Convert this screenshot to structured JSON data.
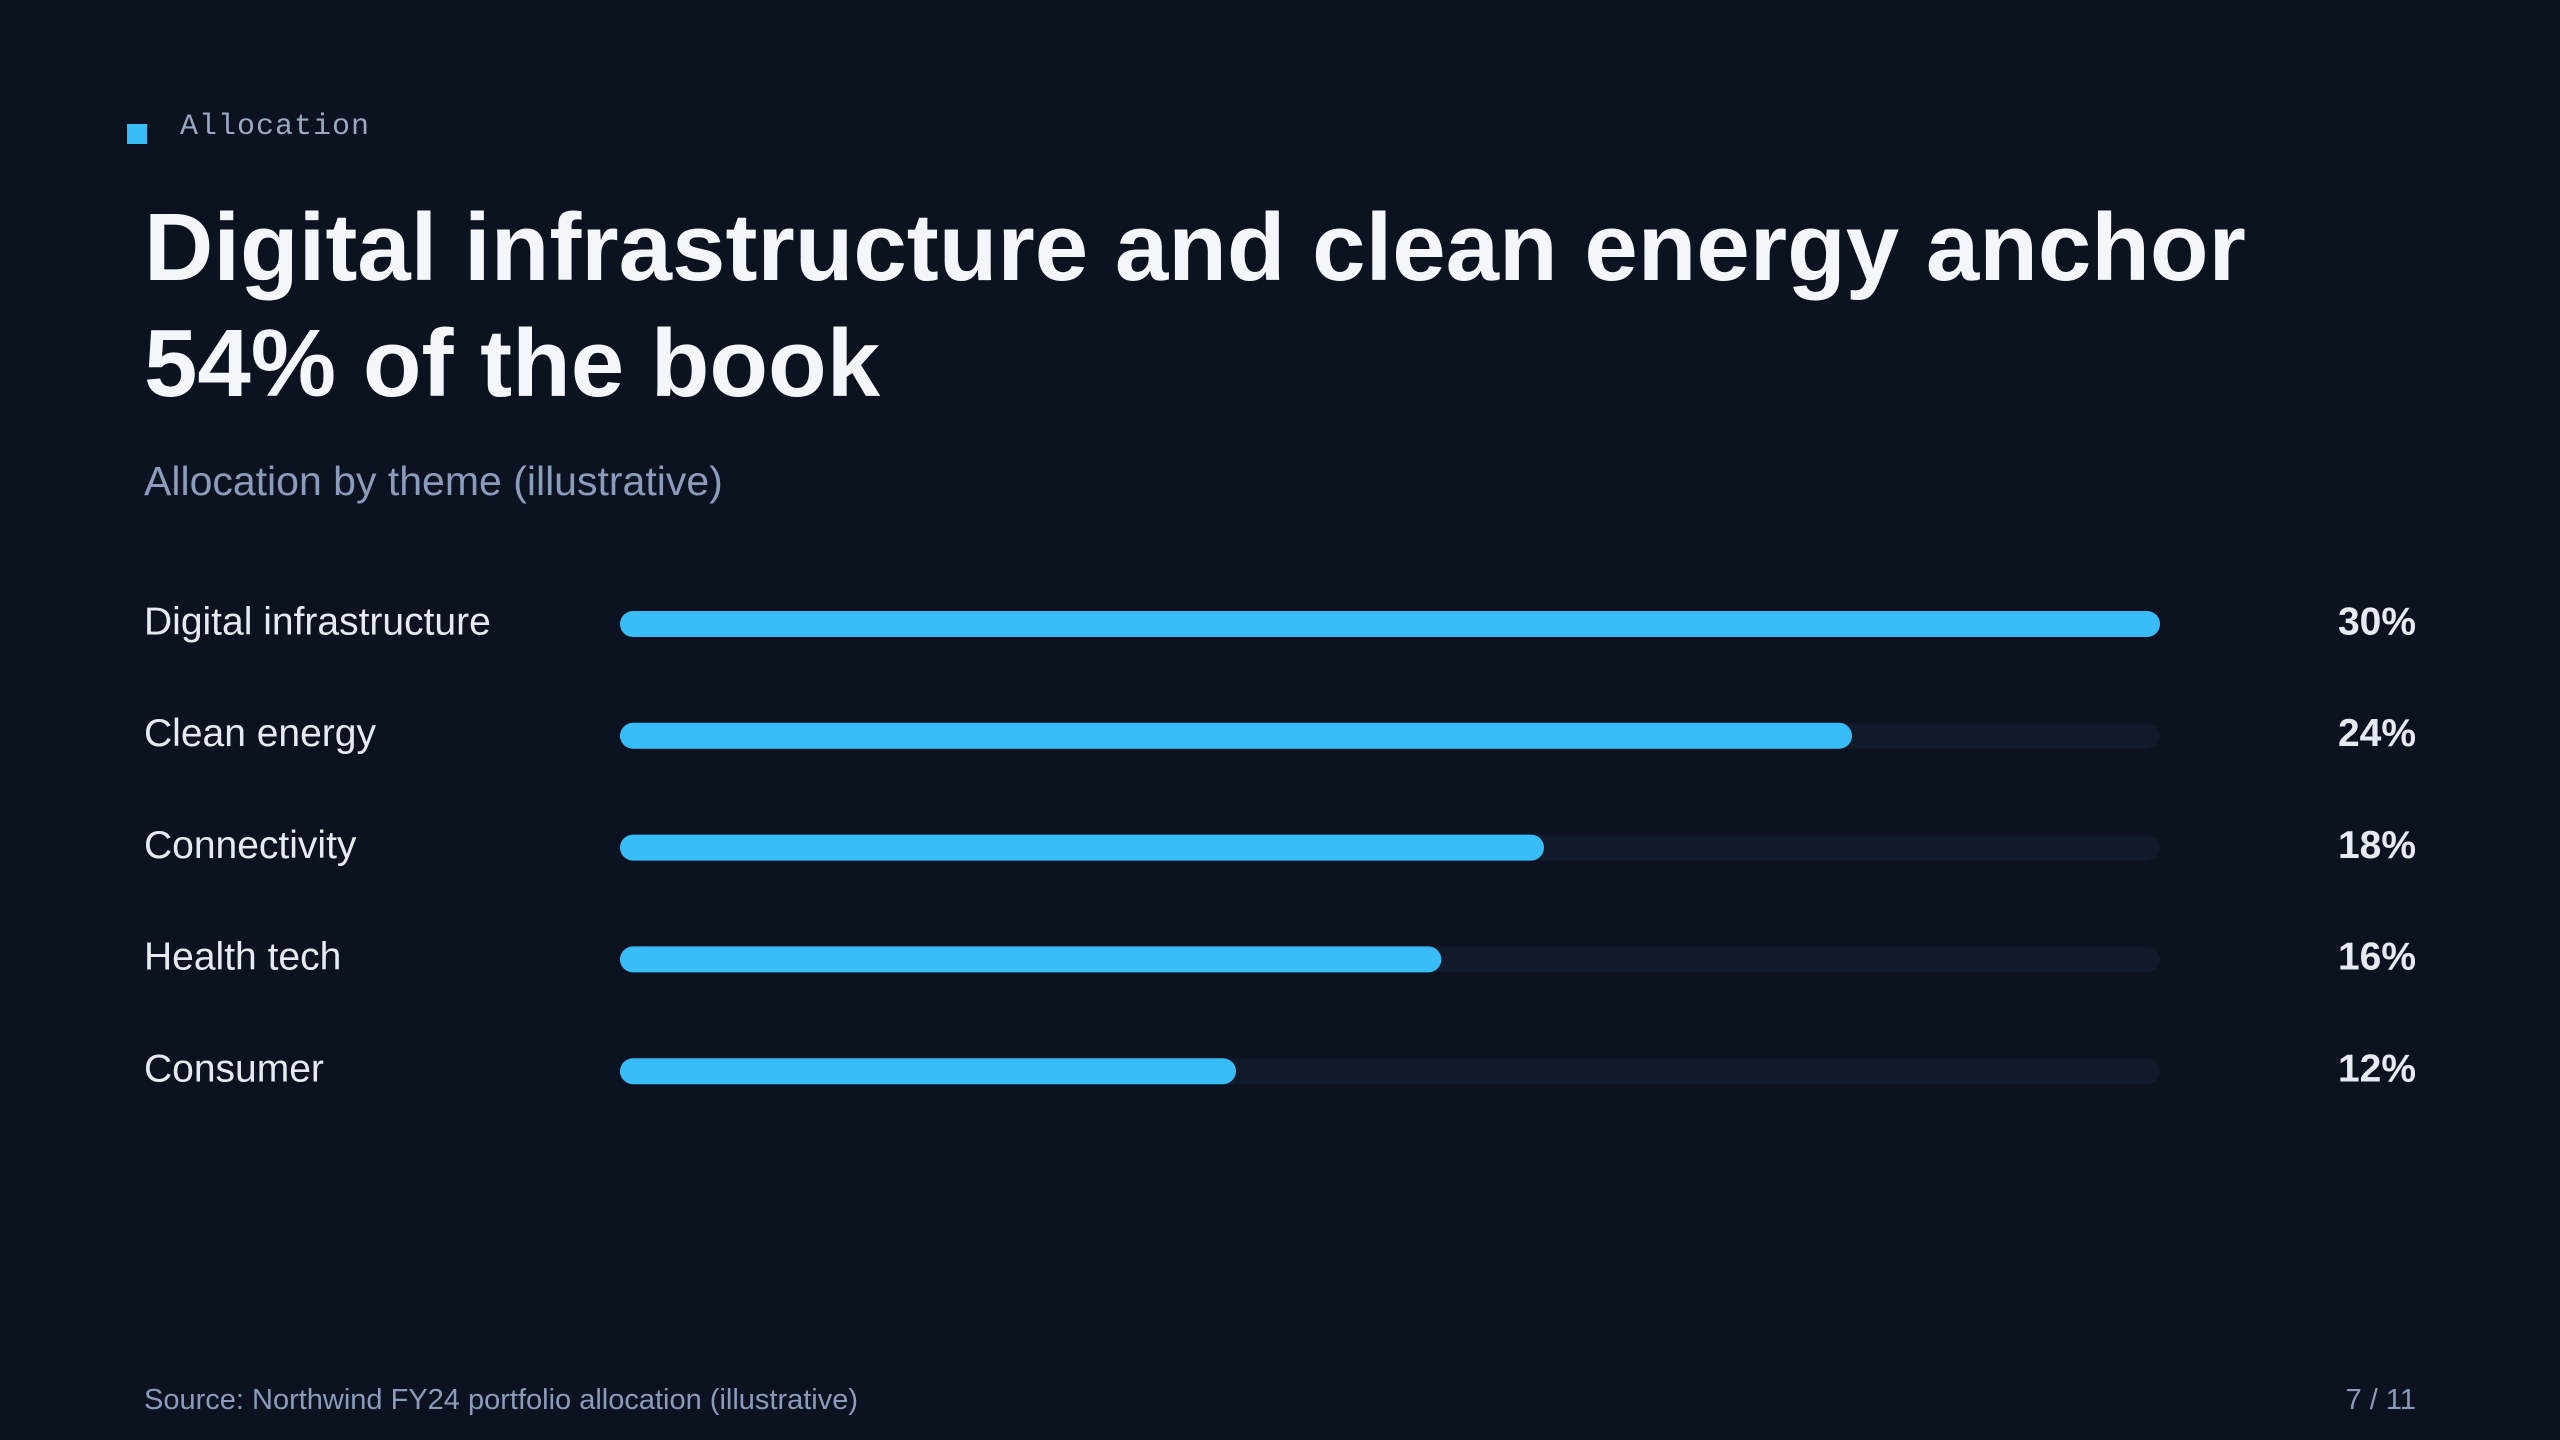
{
  "slide": {
    "eyebrow": "Allocation",
    "source": "Source: Northwind FY24 portfolio allocation (illustrative)",
    "page_number": "7 / 11"
  },
  "chart_data": {
    "type": "bar",
    "orientation": "horizontal",
    "title": "Digital infrastructure and clean energy anchor 54% of the book",
    "subtitle": "Allocation by theme (illustrative)",
    "categories": [
      "Digital infrastructure",
      "Clean energy",
      "Connectivity",
      "Health tech",
      "Consumer"
    ],
    "values": [
      30,
      24,
      18,
      16,
      12
    ],
    "value_labels": [
      "30%",
      "24%",
      "18%",
      "16%",
      "12%"
    ],
    "xlim": [
      0,
      30
    ],
    "color": "#38bdf8"
  }
}
